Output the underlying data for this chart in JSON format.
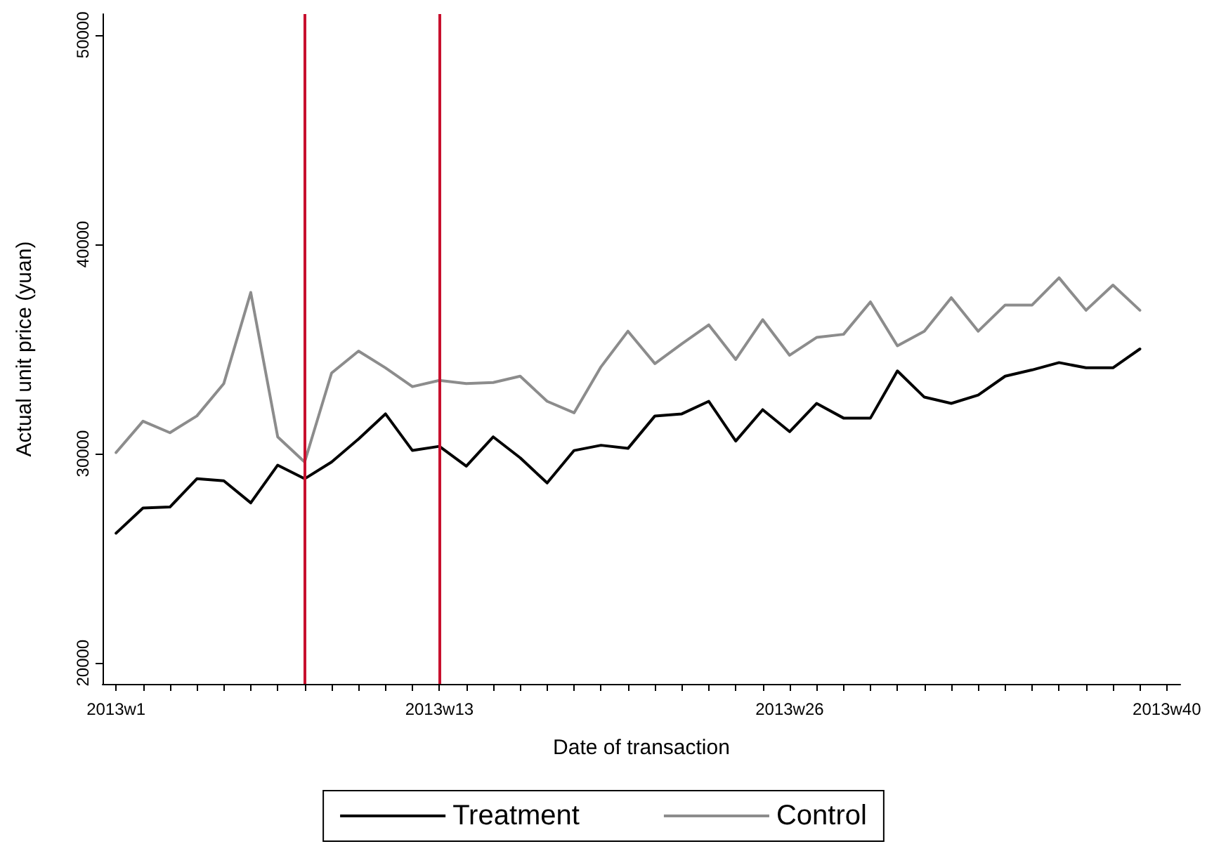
{
  "chart_data": {
    "type": "line",
    "xlabel": "Date of transaction",
    "ylabel": "Actual unit price (yuan)",
    "categories": [
      "2013w1",
      null,
      null,
      null,
      null,
      null,
      null,
      null,
      null,
      null,
      null,
      null,
      "2013w13",
      null,
      null,
      null,
      null,
      null,
      null,
      null,
      null,
      null,
      null,
      null,
      null,
      "2013w26",
      null,
      null,
      null,
      null,
      null,
      null,
      null,
      null,
      null,
      null,
      null,
      null,
      null,
      "2013w40"
    ],
    "series": [
      {
        "name": "Treatment",
        "color": "#000000",
        "values": [
          26200,
          27400,
          27450,
          28800,
          28700,
          27650,
          29450,
          28800,
          29600,
          30700,
          31900,
          30150,
          30350,
          29400,
          30800,
          29800,
          28600,
          30150,
          30400,
          30250,
          31800,
          31900,
          32500,
          30600,
          32100,
          31050,
          32400,
          31700,
          31700,
          33950,
          32700,
          32400,
          32800,
          33700,
          34000,
          34350,
          34100,
          34100,
          35000,
          null
        ]
      },
      {
        "name": "Control",
        "color": "#8c8c8c",
        "values": [
          30050,
          31550,
          31000,
          31800,
          33350,
          37700,
          30800,
          29600,
          33850,
          34900,
          34100,
          33200,
          33500,
          33350,
          33400,
          33700,
          32500,
          31950,
          34150,
          35850,
          34300,
          35250,
          36150,
          34500,
          36400,
          34700,
          35550,
          35700,
          37250,
          35150,
          35850,
          37450,
          35850,
          37100,
          37100,
          38400,
          36850,
          38050,
          36850,
          null
        ]
      }
    ],
    "ylim": [
      19000,
      51000
    ],
    "yticks": [
      20000,
      30000,
      40000,
      50000
    ],
    "ref_lines": [
      {
        "axis": "x",
        "value": "2013w13",
        "color": "#c8102e"
      }
    ],
    "grid": false,
    "legend": "bottom",
    "marker": "none",
    "line_style": "solid"
  }
}
